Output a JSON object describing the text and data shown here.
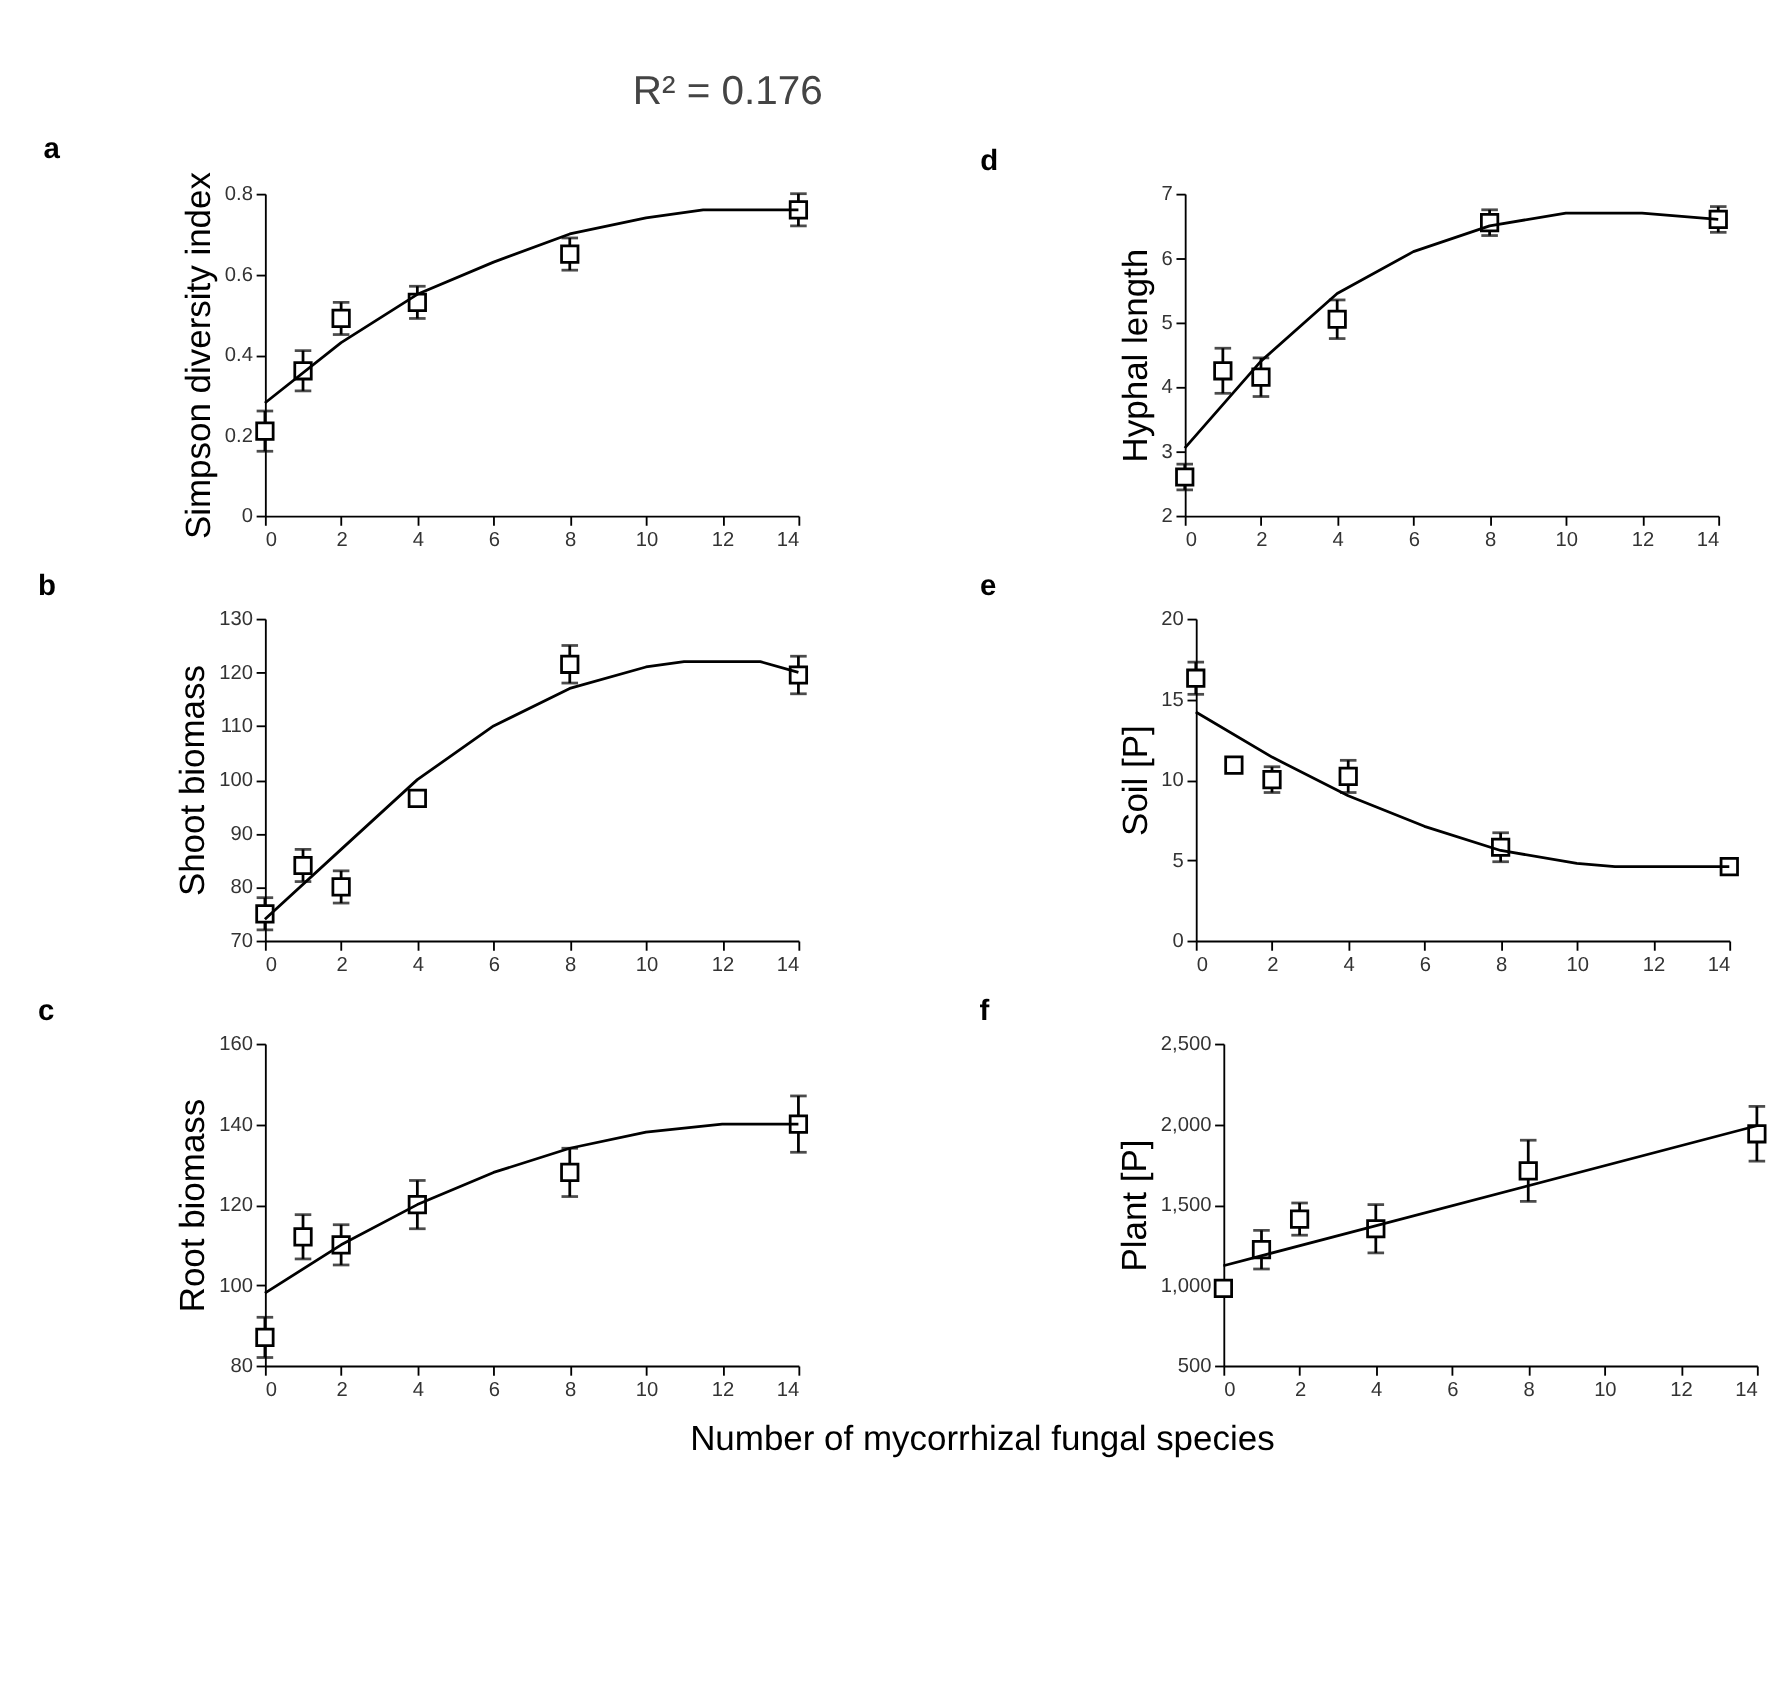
{
  "chart_data": [
    {
      "type": "scatter",
      "title": "a",
      "ylabel": "Simpson diversity index",
      "annotations": [
        "R² = 0.176"
      ],
      "xlim": [
        0,
        14
      ],
      "xticks": [
        0,
        2,
        4,
        6,
        8,
        10,
        12,
        14
      ],
      "ylim": [
        0,
        0.8
      ],
      "yticks": [
        {
          "value": 0,
          "label": "0"
        },
        0.2,
        0.4,
        0.6,
        0.8
      ],
      "grid": false,
      "marker": "square",
      "series": [
        {
          "type": "scatter",
          "color": "#000000",
          "x": [
            0,
            1,
            2,
            4,
            8,
            14
          ],
          "values": [
            0.21,
            0.36,
            0.49,
            0.53,
            0.65,
            0.76
          ],
          "errors": [
            0.05,
            0.05,
            0.04,
            0.04,
            0.04,
            0.04
          ]
        },
        {
          "type": "line",
          "marker": "none",
          "line_style": "solid",
          "color": "#000000",
          "x": [
            0,
            2,
            4,
            6,
            8,
            10,
            11.5,
            14
          ],
          "values": [
            0.28,
            0.43,
            0.55,
            0.63,
            0.7,
            0.74,
            0.76,
            0.76
          ]
        }
      ]
    },
    {
      "type": "scatter",
      "title": "d",
      "ylabel": "Hyphal length",
      "xlim": [
        0,
        14
      ],
      "xticks": [
        0,
        2,
        4,
        6,
        8,
        10,
        12,
        14
      ],
      "ylim": [
        2,
        7
      ],
      "yticks": [
        2,
        3,
        4,
        5,
        6,
        7
      ],
      "grid": false,
      "marker": "square",
      "series": [
        {
          "type": "scatter",
          "color": "#000000",
          "x": [
            0,
            1,
            2,
            4,
            8,
            14
          ],
          "values": [
            2.6,
            4.25,
            4.15,
            5.05,
            6.55,
            6.6
          ],
          "errors": [
            0.2,
            0.35,
            0.3,
            0.3,
            0.2,
            0.2
          ]
        },
        {
          "type": "line",
          "marker": "none",
          "line_style": "solid",
          "color": "#000000",
          "x": [
            0,
            2,
            4,
            6,
            8,
            10,
            12,
            14
          ],
          "values": [
            3.05,
            4.4,
            5.45,
            6.1,
            6.5,
            6.7,
            6.7,
            6.6
          ]
        }
      ]
    },
    {
      "type": "scatter",
      "title": "b",
      "ylabel": "Shoot biomass",
      "xlim": [
        0,
        14
      ],
      "xticks": [
        0,
        2,
        4,
        6,
        8,
        10,
        12,
        14
      ],
      "ylim": [
        70,
        130
      ],
      "yticks": [
        70,
        80,
        90,
        100,
        110,
        120,
        130
      ],
      "grid": false,
      "marker": "square",
      "series": [
        {
          "type": "scatter",
          "color": "#000000",
          "x": [
            0,
            1,
            2,
            4,
            8,
            14
          ],
          "values": [
            75,
            84,
            80,
            96.5,
            121.5,
            119.5
          ],
          "errors": [
            3,
            3,
            3,
            null,
            3.5,
            3.5
          ]
        },
        {
          "type": "line",
          "marker": "none",
          "line_style": "solid",
          "color": "#000000",
          "x": [
            0,
            2,
            4,
            6,
            8,
            10,
            11,
            13,
            14
          ],
          "values": [
            74,
            87,
            100,
            110,
            117,
            121,
            122,
            122,
            120
          ]
        }
      ]
    },
    {
      "type": "scatter",
      "title": "e",
      "ylabel": "Soil [P]",
      "xlim": [
        0,
        14
      ],
      "xticks": [
        0,
        2,
        4,
        6,
        8,
        10,
        12,
        14
      ],
      "ylim": [
        0,
        20
      ],
      "yticks": [
        0,
        5,
        10,
        15,
        20
      ],
      "grid": false,
      "marker": "square",
      "series": [
        {
          "type": "scatter",
          "color": "#000000",
          "x": [
            0,
            1,
            2,
            4,
            8,
            14
          ],
          "values": [
            16.3,
            10.9,
            10,
            10.2,
            5.8,
            4.6
          ],
          "errors": [
            1,
            null,
            0.8,
            1,
            0.9,
            null
          ]
        },
        {
          "type": "line",
          "marker": "none",
          "line_style": "solid",
          "color": "#000000",
          "x": [
            0,
            2,
            4,
            6,
            8,
            10,
            11,
            14
          ],
          "values": [
            14.2,
            11.4,
            9,
            7.1,
            5.6,
            4.8,
            4.6,
            4.6
          ]
        }
      ]
    },
    {
      "type": "scatter",
      "title": "c",
      "ylabel": "Root biomass",
      "xlabel": "Number of mycorrhizal fungal species",
      "xlim": [
        0,
        14
      ],
      "xticks": [
        0,
        2,
        4,
        6,
        8,
        10,
        12,
        14
      ],
      "ylim": [
        80,
        160
      ],
      "yticks": [
        80,
        100,
        120,
        140,
        160
      ],
      "grid": false,
      "marker": "square",
      "series": [
        {
          "type": "scatter",
          "color": "#000000",
          "x": [
            0,
            1,
            2,
            4,
            8,
            14
          ],
          "values": [
            87,
            112,
            110,
            120,
            128,
            140
          ],
          "errors": [
            5,
            5.5,
            5,
            6,
            6,
            7
          ]
        },
        {
          "type": "line",
          "marker": "none",
          "line_style": "solid",
          "color": "#000000",
          "x": [
            0,
            2,
            4,
            6,
            8,
            10,
            12,
            14
          ],
          "values": [
            98,
            110,
            120,
            128,
            134,
            138,
            140,
            140
          ]
        }
      ]
    },
    {
      "type": "scatter",
      "title": "f",
      "ylabel": "Plant [P]",
      "xlim": [
        0,
        14
      ],
      "xticks": [
        0,
        2,
        4,
        6,
        8,
        10,
        12,
        14
      ],
      "ylim": [
        500,
        2500
      ],
      "yticks": [
        {
          "value": 500,
          "label": "500"
        },
        {
          "value": 1000,
          "label": "1,000"
        },
        {
          "value": 1500,
          "label": "1,500"
        },
        {
          "value": 2000,
          "label": "2,000"
        },
        {
          "value": 2500,
          "label": "2,500"
        }
      ],
      "grid": false,
      "marker": "square",
      "series": [
        {
          "type": "scatter",
          "color": "#000000",
          "x": [
            0,
            1,
            2,
            4,
            8,
            14
          ],
          "values": [
            980,
            1220,
            1410,
            1350,
            1710,
            1940
          ],
          "errors": [
            null,
            120,
            100,
            150,
            190,
            170
          ]
        },
        {
          "type": "line",
          "marker": "none",
          "line_style": "solid",
          "color": "#000000",
          "x": [
            0,
            14
          ],
          "values": [
            1120,
            1990
          ]
        }
      ]
    }
  ]
}
